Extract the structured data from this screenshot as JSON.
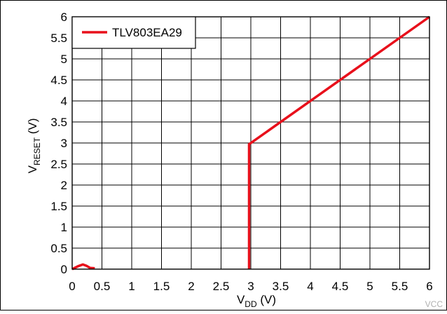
{
  "chart_data": {
    "type": "line",
    "xlabel": {
      "main": "V",
      "sub": "DD",
      "unit": " (V)"
    },
    "ylabel": {
      "main": "V",
      "sub": "RESET",
      "unit": " (V)"
    },
    "xlim": [
      0,
      6
    ],
    "ylim": [
      0,
      6
    ],
    "x_ticks": [
      "0",
      "0.5",
      "1",
      "1.5",
      "2",
      "2.5",
      "3",
      "3.5",
      "4",
      "4.5",
      "5",
      "5.5",
      "6"
    ],
    "y_ticks": [
      "0",
      "0.5",
      "1",
      "1.5",
      "2",
      "2.5",
      "3",
      "3.5",
      "4",
      "4.5",
      "5",
      "5.5",
      "6"
    ],
    "grid": true,
    "legend_position": "top-left",
    "series": [
      {
        "name": "TLV803EA29",
        "color": "#e8101b",
        "points": [
          [
            0,
            0
          ],
          [
            0.1,
            0.07
          ],
          [
            0.18,
            0.11
          ],
          [
            0.24,
            0.08
          ],
          [
            0.3,
            0.03
          ],
          [
            0.38,
            0.02
          ],
          [
            2.97,
            0
          ],
          [
            2.97,
            2.97
          ],
          [
            6,
            6
          ]
        ]
      }
    ],
    "watermark": "VCC"
  }
}
